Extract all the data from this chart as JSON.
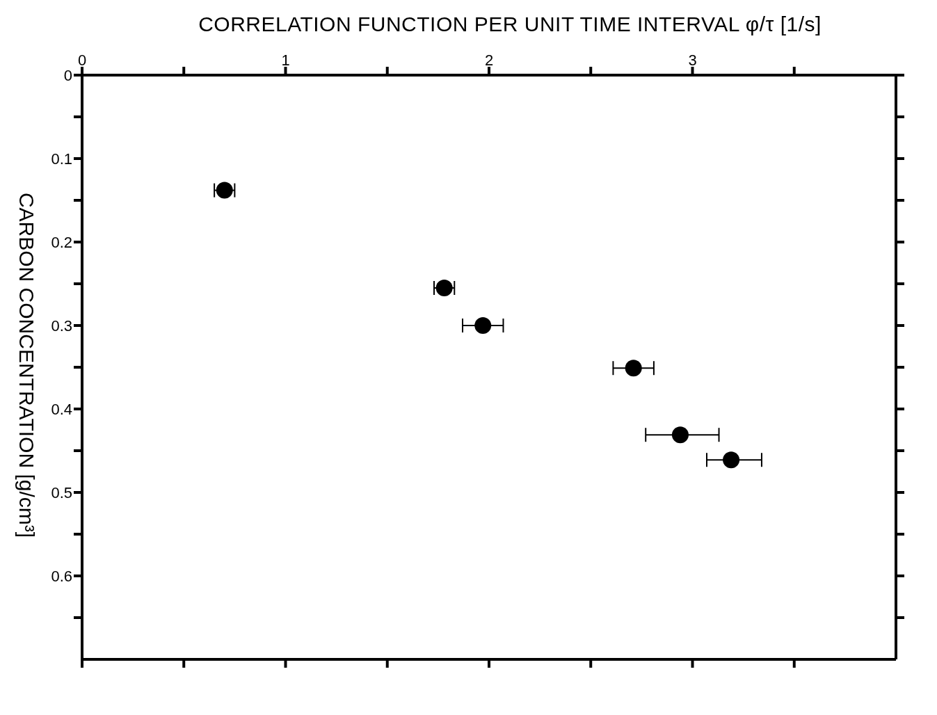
{
  "chart_data": {
    "type": "scatter",
    "xlabel": "CORRELATION FUNCTION PER UNIT TIME INTERVAL φ/τ [1/s]",
    "ylabel": "CARBON CONCENTRATION [g/cm³]",
    "x": [
      0.7,
      1.78,
      1.97,
      2.71,
      2.94,
      3.19
    ],
    "values": [
      0.138,
      0.255,
      0.3,
      0.351,
      0.431,
      0.461
    ],
    "xerrors": [
      0.05,
      0.05,
      0.1,
      0.1,
      [
        2.77,
        3.13
      ],
      [
        3.07,
        3.34
      ]
    ],
    "color": "#000000",
    "marker": "circle",
    "xlim": [
      0,
      4
    ],
    "xticks": [
      0,
      {
        "value": 0.5,
        "label": null
      },
      1,
      {
        "value": 1.5,
        "label": null
      },
      2,
      {
        "value": 2.5,
        "label": null
      },
      3,
      {
        "value": 3.5,
        "label": null
      }
    ],
    "ylim": [
      0.7,
      0
    ],
    "yticks": [
      0,
      {
        "value": 0.05,
        "label": null
      },
      0.1,
      {
        "value": 0.15,
        "label": null
      },
      0.2,
      {
        "value": 0.25,
        "label": null
      },
      0.3,
      {
        "value": 0.35,
        "label": null
      },
      0.4,
      {
        "value": 0.45,
        "label": null
      },
      0.5,
      {
        "value": 0.55,
        "label": null
      },
      0.6,
      {
        "value": 0.65,
        "label": null
      }
    ]
  }
}
